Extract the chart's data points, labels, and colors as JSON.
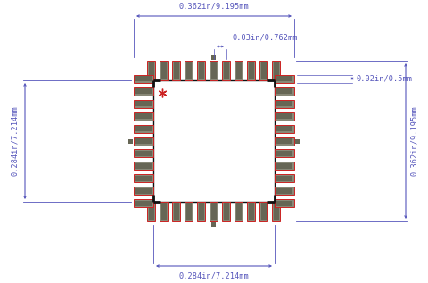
{
  "bg_color": "#ffffff",
  "dim_color": "#5555bb",
  "body_color": "#111111",
  "pad_fill": "#888877",
  "pad_edge": "#cc2222",
  "copper_color": "#666655",
  "red_mark_color": "#cc2222",
  "fig_w": 4.81,
  "fig_h": 3.17,
  "label_top": "0.362in/9.195mm",
  "label_bottom": "0.284in/7.214mm",
  "label_left": "0.284in/7.214mm",
  "label_right": "0.362in/9.195mm",
  "label_pitch": "0.03in/0.762mm",
  "label_pad_h": "0.02in/0.5mm",
  "num_pads_side": 11
}
